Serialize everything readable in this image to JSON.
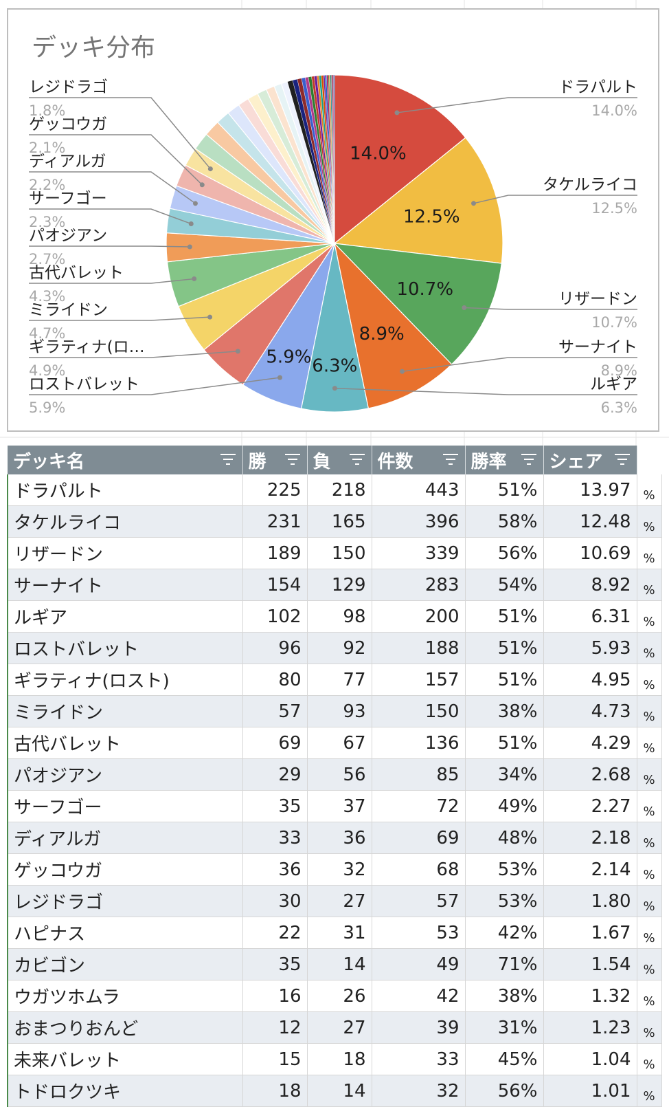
{
  "chart_data": {
    "type": "pie",
    "title": "デッキ分布",
    "labeled_slices": [
      {
        "name": "ドラパルト",
        "value": 14.0,
        "label": "14.0%",
        "color": "#d54b3e"
      },
      {
        "name": "タケルライコ",
        "value": 12.5,
        "label": "12.5%",
        "color": "#f1bd42"
      },
      {
        "name": "リザードン",
        "value": 10.7,
        "label": "10.7%",
        "color": "#58a65c"
      },
      {
        "name": "サーナイト",
        "value": 8.9,
        "label": "8.9%",
        "color": "#e8712d"
      },
      {
        "name": "ルギア",
        "value": 6.3,
        "label": "6.3%",
        "color": "#67b8c3"
      },
      {
        "name": "ロストバレット",
        "value": 5.9,
        "label": "5.9%",
        "color": "#8aa8ec"
      },
      {
        "name": "ギラティナ(ロ…",
        "value": 4.9,
        "label": "4.9%",
        "color": "#e0766a"
      },
      {
        "name": "ミライドン",
        "value": 4.7,
        "label": "4.7%",
        "color": "#f4d468"
      },
      {
        "name": "古代バレット",
        "value": 4.3,
        "label": "4.3%",
        "color": "#84c587"
      },
      {
        "name": "パオジアン",
        "value": 2.7,
        "label": "2.7%",
        "color": "#f09c58"
      },
      {
        "name": "サーフゴー",
        "value": 2.3,
        "label": "2.3%",
        "color": "#93ced7"
      },
      {
        "name": "ディアルガ",
        "value": 2.2,
        "label": "2.2%",
        "color": "#b7c8f6"
      },
      {
        "name": "ゲッコウガ",
        "value": 2.1,
        "label": "2.1%",
        "color": "#efb5ad"
      },
      {
        "name": "レジドラゴ",
        "value": 1.8,
        "label": "1.8%",
        "color": "#f8e3a0"
      }
    ],
    "inner_labels": [
      "14.0%",
      "12.5%",
      "10.7%",
      "8.9%",
      "6.3%",
      "5.9%"
    ],
    "minor_slices": [
      1.67,
      1.54,
      1.32,
      1.23,
      1.04,
      1.01,
      0.9,
      0.8,
      0.7,
      0.6,
      0.5,
      0.45,
      0.4,
      0.35,
      0.3,
      0.3,
      0.25,
      0.25,
      0.2,
      0.2,
      0.2,
      0.15,
      0.15,
      0.15,
      0.1,
      0.1,
      0.1,
      0.1,
      0.1,
      0.1
    ],
    "minor_colors": [
      "#b9dfc2",
      "#f8c9a2",
      "#c5e4ea",
      "#dde6fb",
      "#f9dcd7",
      "#fdf0cc",
      "#d7ecd8",
      "#fbe3cf",
      "#e6f3f5",
      "#eef2fd",
      "#202020",
      "#1a237e",
      "#8e2a2a",
      "#3a5fcd",
      "#b03a8a",
      "#2e7d32",
      "#c0392b",
      "#6a1b9a",
      "#e67e22",
      "#16a085",
      "#d35400",
      "#7b1fa2",
      "#1565c0",
      "#ad1457",
      "#558b2f",
      "#ef6c00",
      "#00838f",
      "#5d4037",
      "#c2185b",
      "#283593"
    ]
  },
  "table": {
    "headers": [
      "デッキ名",
      "勝",
      "負",
      "件数",
      "勝率",
      "シェア"
    ],
    "percent_sign": "%",
    "rows": [
      {
        "name": "ドラパルト",
        "win": "225",
        "lose": "218",
        "count": "443",
        "rate": "51%",
        "share": "13.97"
      },
      {
        "name": "タケルライコ",
        "win": "231",
        "lose": "165",
        "count": "396",
        "rate": "58%",
        "share": "12.48"
      },
      {
        "name": "リザードン",
        "win": "189",
        "lose": "150",
        "count": "339",
        "rate": "56%",
        "share": "10.69"
      },
      {
        "name": "サーナイト",
        "win": "154",
        "lose": "129",
        "count": "283",
        "rate": "54%",
        "share": "8.92"
      },
      {
        "name": "ルギア",
        "win": "102",
        "lose": "98",
        "count": "200",
        "rate": "51%",
        "share": "6.31"
      },
      {
        "name": "ロストバレット",
        "win": "96",
        "lose": "92",
        "count": "188",
        "rate": "51%",
        "share": "5.93"
      },
      {
        "name": "ギラティナ(ロスト)",
        "win": "80",
        "lose": "77",
        "count": "157",
        "rate": "51%",
        "share": "4.95"
      },
      {
        "name": "ミライドン",
        "win": "57",
        "lose": "93",
        "count": "150",
        "rate": "38%",
        "share": "4.73"
      },
      {
        "name": "古代バレット",
        "win": "69",
        "lose": "67",
        "count": "136",
        "rate": "51%",
        "share": "4.29"
      },
      {
        "name": "パオジアン",
        "win": "29",
        "lose": "56",
        "count": "85",
        "rate": "34%",
        "share": "2.68"
      },
      {
        "name": "サーフゴー",
        "win": "35",
        "lose": "37",
        "count": "72",
        "rate": "49%",
        "share": "2.27"
      },
      {
        "name": "ディアルガ",
        "win": "33",
        "lose": "36",
        "count": "69",
        "rate": "48%",
        "share": "2.18"
      },
      {
        "name": "ゲッコウガ",
        "win": "36",
        "lose": "32",
        "count": "68",
        "rate": "53%",
        "share": "2.14"
      },
      {
        "name": "レジドラゴ",
        "win": "30",
        "lose": "27",
        "count": "57",
        "rate": "53%",
        "share": "1.80"
      },
      {
        "name": "ハピナス",
        "win": "22",
        "lose": "31",
        "count": "53",
        "rate": "42%",
        "share": "1.67"
      },
      {
        "name": "カビゴン",
        "win": "35",
        "lose": "14",
        "count": "49",
        "rate": "71%",
        "share": "1.54"
      },
      {
        "name": "ウガツホムラ",
        "win": "16",
        "lose": "26",
        "count": "42",
        "rate": "38%",
        "share": "1.32"
      },
      {
        "name": "おまつりおんど",
        "win": "12",
        "lose": "27",
        "count": "39",
        "rate": "31%",
        "share": "1.23"
      },
      {
        "name": "未来バレット",
        "win": "15",
        "lose": "18",
        "count": "33",
        "rate": "45%",
        "share": "1.04"
      },
      {
        "name": "トドロクツキ",
        "win": "18",
        "lose": "14",
        "count": "32",
        "rate": "56%",
        "share": "1.01"
      }
    ]
  }
}
